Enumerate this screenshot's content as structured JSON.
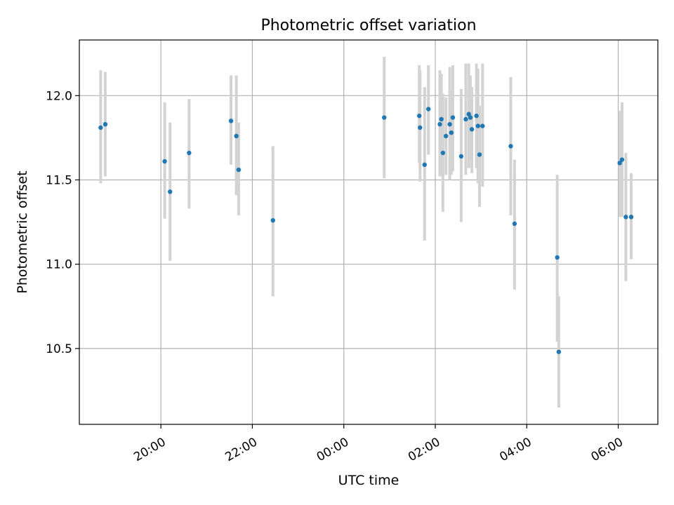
{
  "chart_data": {
    "type": "scatter",
    "title": "Photometric offset variation",
    "xlabel": "UTC time",
    "ylabel": "Photometric offset",
    "x_unit": "UTC time of day (day 1 = evening, day 2 = after midnight)",
    "xlim": [
      "day1 18:13",
      "day2 06:52"
    ],
    "ylim": [
      10.05,
      12.33
    ],
    "x_ticks": [
      {
        "label": "20:00",
        "time": "day1 20:00"
      },
      {
        "label": "22:00",
        "time": "day1 22:00"
      },
      {
        "label": "00:00",
        "time": "day2 00:00"
      },
      {
        "label": "02:00",
        "time": "day2 02:00"
      },
      {
        "label": "04:00",
        "time": "day2 04:00"
      },
      {
        "label": "06:00",
        "time": "day2 06:00"
      }
    ],
    "y_ticks": [
      {
        "label": "10.5",
        "value": 10.5
      },
      {
        "label": "11.0",
        "value": 11.0
      },
      {
        "label": "11.5",
        "value": 11.5
      },
      {
        "label": "12.0",
        "value": 12.0
      }
    ],
    "grid": true,
    "colors": {
      "point": "#1f77b4",
      "errorbar": "#d3d3d3",
      "grid": "#b0b0b0",
      "axes": "#000000"
    },
    "points": [
      {
        "time": "day1 18:41",
        "y": 11.81,
        "err_low": 11.48,
        "err_high": 12.15
      },
      {
        "time": "day1 18:47",
        "y": 11.83,
        "err_low": 11.52,
        "err_high": 12.14
      },
      {
        "time": "day1 20:05",
        "y": 11.61,
        "err_low": 11.27,
        "err_high": 11.96
      },
      {
        "time": "day1 20:12",
        "y": 11.43,
        "err_low": 11.02,
        "err_high": 11.84
      },
      {
        "time": "day1 20:37",
        "y": 11.66,
        "err_low": 11.33,
        "err_high": 11.98
      },
      {
        "time": "day1 21:32",
        "y": 11.85,
        "err_low": 11.59,
        "err_high": 12.12
      },
      {
        "time": "day1 21:39",
        "y": 11.76,
        "err_low": 11.41,
        "err_high": 12.12
      },
      {
        "time": "day1 21:42",
        "y": 11.56,
        "err_low": 11.29,
        "err_high": 11.84
      },
      {
        "time": "day1 22:27",
        "y": 11.26,
        "err_low": 10.81,
        "err_high": 11.7
      },
      {
        "time": "day2 00:53",
        "y": 11.87,
        "err_low": 11.51,
        "err_high": 12.23
      },
      {
        "time": "day2 01:39",
        "y": 11.88,
        "err_low": 11.6,
        "err_high": 12.18
      },
      {
        "time": "day2 01:40",
        "y": 11.81,
        "err_low": 11.49,
        "err_high": 12.15
      },
      {
        "time": "day2 01:46",
        "y": 11.59,
        "err_low": 11.14,
        "err_high": 12.05
      },
      {
        "time": "day2 01:51",
        "y": 11.92,
        "err_low": 11.65,
        "err_high": 12.18
      },
      {
        "time": "day2 02:06",
        "y": 11.83,
        "err_low": 11.52,
        "err_high": 12.15
      },
      {
        "time": "day2 02:08",
        "y": 11.86,
        "err_low": 11.53,
        "err_high": 12.13
      },
      {
        "time": "day2 02:10",
        "y": 11.66,
        "err_low": 11.31,
        "err_high": 12.01
      },
      {
        "time": "day2 02:14",
        "y": 11.76,
        "err_low": 11.53,
        "err_high": 11.99
      },
      {
        "time": "day2 02:19",
        "y": 11.83,
        "err_low": 11.5,
        "err_high": 12.17
      },
      {
        "time": "day2 02:21",
        "y": 11.78,
        "err_low": 11.53,
        "err_high": 12.03
      },
      {
        "time": "day2 02:23",
        "y": 11.87,
        "err_low": 11.55,
        "err_high": 12.18
      },
      {
        "time": "day2 02:34",
        "y": 11.64,
        "err_low": 11.25,
        "err_high": 12.04
      },
      {
        "time": "day2 02:40",
        "y": 11.86,
        "err_low": 11.53,
        "err_high": 12.19
      },
      {
        "time": "day2 02:44",
        "y": 11.89,
        "err_low": 11.57,
        "err_high": 12.19
      },
      {
        "time": "day2 02:46",
        "y": 11.87,
        "err_low": 11.62,
        "err_high": 12.12
      },
      {
        "time": "day2 02:48",
        "y": 11.8,
        "err_low": 11.54,
        "err_high": 12.05
      },
      {
        "time": "day2 02:54",
        "y": 11.88,
        "err_low": 11.57,
        "err_high": 12.19
      },
      {
        "time": "day2 02:56",
        "y": 11.82,
        "err_low": 11.48,
        "err_high": 12.16
      },
      {
        "time": "day2 02:58",
        "y": 11.65,
        "err_low": 11.34,
        "err_high": 11.94
      },
      {
        "time": "day2 03:02",
        "y": 11.82,
        "err_low": 11.46,
        "err_high": 12.19
      },
      {
        "time": "day2 03:39",
        "y": 11.7,
        "err_low": 11.29,
        "err_high": 12.11
      },
      {
        "time": "day2 03:44",
        "y": 11.24,
        "err_low": 10.85,
        "err_high": 11.62
      },
      {
        "time": "day2 04:40",
        "y": 11.04,
        "err_low": 10.54,
        "err_high": 11.53
      },
      {
        "time": "day2 04:42",
        "y": 10.48,
        "err_low": 10.15,
        "err_high": 10.81
      },
      {
        "time": "day2 06:02",
        "y": 11.6,
        "err_low": 11.28,
        "err_high": 11.91
      },
      {
        "time": "day2 06:05",
        "y": 11.62,
        "err_low": 11.28,
        "err_high": 11.96
      },
      {
        "time": "day2 06:10",
        "y": 11.28,
        "err_low": 10.9,
        "err_high": 11.66
      },
      {
        "time": "day2 06:17",
        "y": 11.28,
        "err_low": 11.03,
        "err_high": 11.54
      }
    ]
  }
}
